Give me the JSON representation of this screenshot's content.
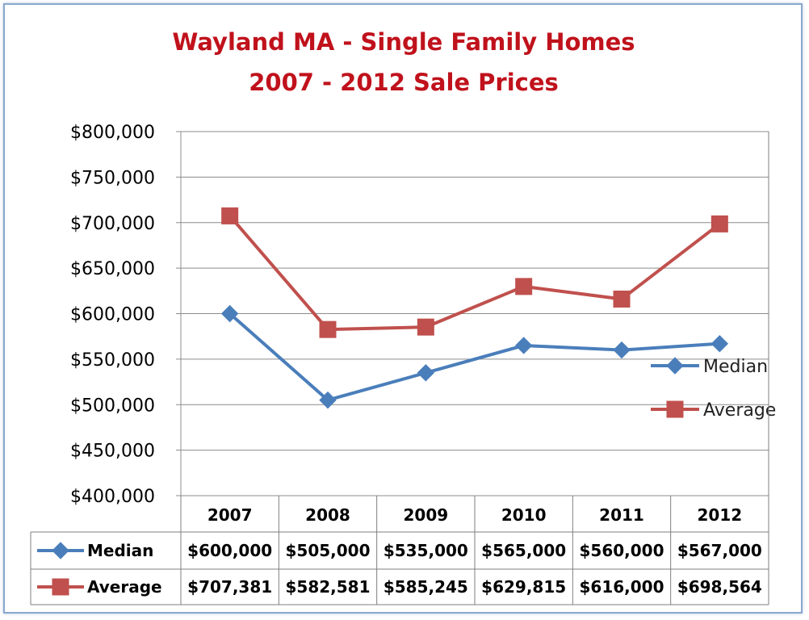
{
  "chart_data": {
    "type": "line",
    "title": [
      "Wayland MA - Single Family Homes",
      "2007 - 2012  Sale Prices"
    ],
    "categories": [
      "2007",
      "2008",
      "2009",
      "2010",
      "2011",
      "2012"
    ],
    "series": [
      {
        "name": "Median",
        "color": "#4a7ebb",
        "marker": "diamond",
        "values": [
          600000,
          505000,
          535000,
          565000,
          560000,
          567000
        ],
        "labels": [
          "$600,000",
          "$505,000",
          "$535,000",
          "$565,000",
          "$560,000",
          "$567,000"
        ]
      },
      {
        "name": "Average",
        "color": "#c0504d",
        "marker": "square",
        "values": [
          707381,
          582581,
          585245,
          629815,
          616000,
          698564
        ],
        "labels": [
          "$707,381",
          "$582,581",
          "$585,245",
          "$629,815",
          "$616,000",
          "$698,564"
        ]
      }
    ],
    "ylim": [
      400000,
      800000
    ],
    "yticks": [
      "$400,000",
      "$450,000",
      "$500,000",
      "$550,000",
      "$600,000",
      "$650,000",
      "$700,000",
      "$750,000",
      "$800,000"
    ],
    "grid": true,
    "legend": "right",
    "data_table": true
  }
}
